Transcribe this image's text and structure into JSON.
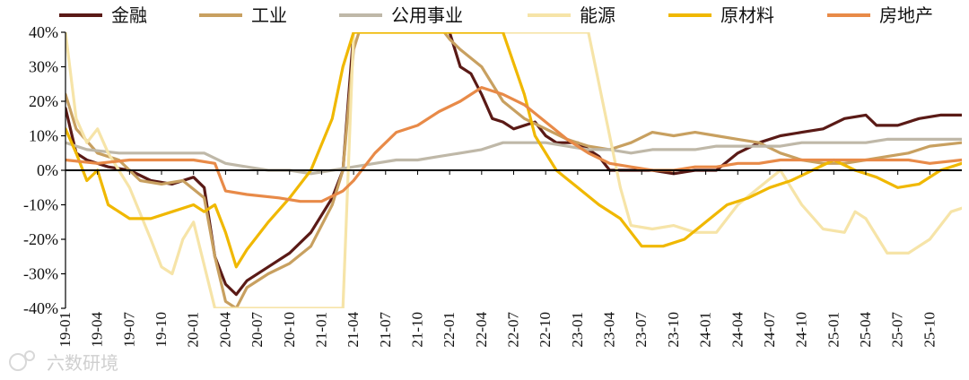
{
  "watermark": {
    "text": "六数研境",
    "icon": "camera-logo-icon"
  },
  "chart_data": {
    "type": "line",
    "title": "",
    "xlabel": "",
    "ylabel": "",
    "ylim": [
      -40,
      40
    ],
    "yticks": [
      40,
      30,
      20,
      10,
      0,
      -10,
      -20,
      -30,
      -40
    ],
    "ytick_labels": [
      "40%",
      "30%",
      "20%",
      "10%",
      "0%",
      "-10%",
      "-20%",
      "-30%",
      "-40%"
    ],
    "x_start": "2019-01",
    "x_end": "2026-01",
    "xticks": [
      "19-01",
      "19-04",
      "19-07",
      "19-10",
      "20-01",
      "20-04",
      "20-07",
      "20-10",
      "21-01",
      "21-04",
      "21-07",
      "21-10",
      "22-01",
      "22-04",
      "22-07",
      "22-10",
      "23-01",
      "23-04",
      "23-07",
      "23-10",
      "24-01",
      "24-04",
      "24-07",
      "24-10",
      "25-01",
      "25-04",
      "25-07",
      "25-10"
    ],
    "legend_position": "top",
    "grid": false,
    "series": [
      {
        "name": "金融",
        "color": "#5a1a16",
        "points": [
          [
            "2019-01",
            18
          ],
          [
            "2019-02",
            5
          ],
          [
            "2019-03",
            3
          ],
          [
            "2019-05",
            1
          ],
          [
            "2019-07",
            0
          ],
          [
            "2019-09",
            -3
          ],
          [
            "2019-11",
            -4
          ],
          [
            "2020-01",
            -2
          ],
          [
            "2020-02",
            -5
          ],
          [
            "2020-03",
            -25
          ],
          [
            "2020-04",
            -33
          ],
          [
            "2020-05",
            -36
          ],
          [
            "2020-06",
            -32
          ],
          [
            "2020-08",
            -28
          ],
          [
            "2020-10",
            -24
          ],
          [
            "2020-12",
            -18
          ],
          [
            "2021-02",
            -8
          ],
          [
            "2021-03",
            0
          ],
          [
            "2021-04",
            40
          ],
          [
            "2021-05",
            45
          ],
          [
            "2022-01",
            40
          ],
          [
            "2022-02",
            30
          ],
          [
            "2022-03",
            28
          ],
          [
            "2022-04",
            22
          ],
          [
            "2022-05",
            15
          ],
          [
            "2022-06",
            14
          ],
          [
            "2022-07",
            12
          ],
          [
            "2022-09",
            14
          ],
          [
            "2022-10",
            10
          ],
          [
            "2022-11",
            8
          ],
          [
            "2023-01",
            8
          ],
          [
            "2023-02",
            6
          ],
          [
            "2023-03",
            4
          ],
          [
            "2023-04",
            0
          ],
          [
            "2023-06",
            0
          ],
          [
            "2023-08",
            0
          ],
          [
            "2023-10",
            -1
          ],
          [
            "2023-12",
            0
          ],
          [
            "2024-02",
            0
          ],
          [
            "2024-04",
            5
          ],
          [
            "2024-06",
            8
          ],
          [
            "2024-08",
            10
          ],
          [
            "2024-10",
            11
          ],
          [
            "2024-12",
            12
          ],
          [
            "2025-02",
            15
          ],
          [
            "2025-04",
            16
          ],
          [
            "2025-05",
            13
          ],
          [
            "2025-07",
            13
          ],
          [
            "2025-09",
            15
          ],
          [
            "2025-11",
            16
          ],
          [
            "2026-01",
            16
          ]
        ]
      },
      {
        "name": "工业",
        "color": "#c8a060",
        "points": [
          [
            "2019-01",
            22
          ],
          [
            "2019-02",
            12
          ],
          [
            "2019-04",
            5
          ],
          [
            "2019-06",
            3
          ],
          [
            "2019-08",
            -3
          ],
          [
            "2019-10",
            -4
          ],
          [
            "2019-12",
            -3
          ],
          [
            "2020-02",
            -8
          ],
          [
            "2020-03",
            -25
          ],
          [
            "2020-04",
            -38
          ],
          [
            "2020-05",
            -40
          ],
          [
            "2020-06",
            -34
          ],
          [
            "2020-08",
            -30
          ],
          [
            "2020-10",
            -27
          ],
          [
            "2020-12",
            -22
          ],
          [
            "2021-02",
            -10
          ],
          [
            "2021-03",
            0
          ],
          [
            "2021-04",
            35
          ],
          [
            "2021-05",
            45
          ],
          [
            "2021-10",
            50
          ],
          [
            "2022-01",
            38
          ],
          [
            "2022-02",
            35
          ],
          [
            "2022-04",
            30
          ],
          [
            "2022-06",
            20
          ],
          [
            "2022-08",
            15
          ],
          [
            "2022-10",
            12
          ],
          [
            "2022-12",
            9
          ],
          [
            "2023-02",
            7
          ],
          [
            "2023-04",
            6
          ],
          [
            "2023-06",
            8
          ],
          [
            "2023-08",
            11
          ],
          [
            "2023-10",
            10
          ],
          [
            "2023-12",
            11
          ],
          [
            "2024-02",
            10
          ],
          [
            "2024-04",
            9
          ],
          [
            "2024-06",
            8
          ],
          [
            "2024-08",
            5
          ],
          [
            "2024-10",
            3
          ],
          [
            "2024-12",
            2
          ],
          [
            "2025-02",
            2
          ],
          [
            "2025-04",
            3
          ],
          [
            "2025-06",
            4
          ],
          [
            "2025-08",
            5
          ],
          [
            "2025-10",
            7
          ],
          [
            "2026-01",
            8
          ]
        ]
      },
      {
        "name": "公用事业",
        "color": "#bfb8a8",
        "points": [
          [
            "2019-01",
            8
          ],
          [
            "2019-03",
            6
          ],
          [
            "2019-06",
            5
          ],
          [
            "2019-09",
            5
          ],
          [
            "2019-12",
            5
          ],
          [
            "2020-02",
            5
          ],
          [
            "2020-04",
            2
          ],
          [
            "2020-06",
            1
          ],
          [
            "2020-08",
            0
          ],
          [
            "2020-10",
            0
          ],
          [
            "2020-12",
            -1
          ],
          [
            "2021-02",
            0
          ],
          [
            "2021-04",
            1
          ],
          [
            "2021-06",
            2
          ],
          [
            "2021-08",
            3
          ],
          [
            "2021-10",
            3
          ],
          [
            "2021-12",
            4
          ],
          [
            "2022-02",
            5
          ],
          [
            "2022-04",
            6
          ],
          [
            "2022-06",
            8
          ],
          [
            "2022-08",
            8
          ],
          [
            "2022-10",
            8
          ],
          [
            "2022-12",
            7
          ],
          [
            "2023-02",
            6
          ],
          [
            "2023-04",
            6
          ],
          [
            "2023-06",
            5
          ],
          [
            "2023-08",
            6
          ],
          [
            "2023-10",
            6
          ],
          [
            "2023-12",
            6
          ],
          [
            "2024-02",
            7
          ],
          [
            "2024-04",
            7
          ],
          [
            "2024-06",
            7
          ],
          [
            "2024-08",
            7
          ],
          [
            "2024-10",
            8
          ],
          [
            "2024-12",
            8
          ],
          [
            "2025-02",
            8
          ],
          [
            "2025-04",
            8
          ],
          [
            "2025-06",
            9
          ],
          [
            "2025-08",
            9
          ],
          [
            "2025-10",
            9
          ],
          [
            "2026-01",
            9
          ]
        ]
      },
      {
        "name": "能源",
        "color": "#f6e4a8",
        "points": [
          [
            "2019-01",
            40
          ],
          [
            "2019-02",
            15
          ],
          [
            "2019-03",
            8
          ],
          [
            "2019-04",
            12
          ],
          [
            "2019-05",
            5
          ],
          [
            "2019-07",
            -5
          ],
          [
            "2019-09",
            -20
          ],
          [
            "2019-10",
            -28
          ],
          [
            "2019-11",
            -30
          ],
          [
            "2019-12",
            -20
          ],
          [
            "2020-01",
            -15
          ],
          [
            "2020-03",
            -40
          ],
          [
            "2021-03",
            -40
          ],
          [
            "2021-04",
            40
          ],
          [
            "2023-02",
            40
          ],
          [
            "2023-04",
            10
          ],
          [
            "2023-05",
            -5
          ],
          [
            "2023-06",
            -16
          ],
          [
            "2023-08",
            -17
          ],
          [
            "2023-10",
            -16
          ],
          [
            "2023-12",
            -18
          ],
          [
            "2024-02",
            -18
          ],
          [
            "2024-04",
            -10
          ],
          [
            "2024-06",
            -5
          ],
          [
            "2024-08",
            0
          ],
          [
            "2024-10",
            -10
          ],
          [
            "2024-12",
            -17
          ],
          [
            "2025-02",
            -18
          ],
          [
            "2025-03",
            -12
          ],
          [
            "2025-04",
            -14
          ],
          [
            "2025-06",
            -24
          ],
          [
            "2025-08",
            -24
          ],
          [
            "2025-10",
            -20
          ],
          [
            "2025-12",
            -12
          ],
          [
            "2026-01",
            -11
          ]
        ]
      },
      {
        "name": "原材料",
        "color": "#f0b800",
        "points": [
          [
            "2019-01",
            12
          ],
          [
            "2019-02",
            5
          ],
          [
            "2019-03",
            -3
          ],
          [
            "2019-04",
            0
          ],
          [
            "2019-05",
            -10
          ],
          [
            "2019-07",
            -14
          ],
          [
            "2019-09",
            -14
          ],
          [
            "2019-11",
            -12
          ],
          [
            "2020-01",
            -10
          ],
          [
            "2020-02",
            -12
          ],
          [
            "2020-03",
            -10
          ],
          [
            "2020-04",
            -18
          ],
          [
            "2020-05",
            -28
          ],
          [
            "2020-06",
            -23
          ],
          [
            "2020-08",
            -15
          ],
          [
            "2020-10",
            -8
          ],
          [
            "2020-12",
            0
          ],
          [
            "2021-02",
            15
          ],
          [
            "2021-03",
            30
          ],
          [
            "2021-04",
            40
          ],
          [
            "2022-06",
            40
          ],
          [
            "2022-08",
            22
          ],
          [
            "2022-09",
            10
          ],
          [
            "2022-11",
            0
          ],
          [
            "2023-01",
            -5
          ],
          [
            "2023-03",
            -10
          ],
          [
            "2023-05",
            -14
          ],
          [
            "2023-07",
            -22
          ],
          [
            "2023-09",
            -22
          ],
          [
            "2023-11",
            -20
          ],
          [
            "2024-01",
            -15
          ],
          [
            "2024-03",
            -10
          ],
          [
            "2024-05",
            -8
          ],
          [
            "2024-07",
            -5
          ],
          [
            "2024-09",
            -3
          ],
          [
            "2024-11",
            0
          ],
          [
            "2025-01",
            3
          ],
          [
            "2025-03",
            0
          ],
          [
            "2025-05",
            -2
          ],
          [
            "2025-07",
            -5
          ],
          [
            "2025-09",
            -4
          ],
          [
            "2025-11",
            0
          ],
          [
            "2026-01",
            2
          ]
        ]
      },
      {
        "name": "房地产",
        "color": "#e88a48",
        "points": [
          [
            "2019-01",
            3
          ],
          [
            "2019-04",
            2
          ],
          [
            "2019-07",
            3
          ],
          [
            "2019-10",
            3
          ],
          [
            "2020-01",
            3
          ],
          [
            "2020-03",
            2
          ],
          [
            "2020-04",
            -6
          ],
          [
            "2020-06",
            -7
          ],
          [
            "2020-09",
            -8
          ],
          [
            "2020-11",
            -9
          ],
          [
            "2021-01",
            -9
          ],
          [
            "2021-03",
            -6
          ],
          [
            "2021-04",
            -3
          ],
          [
            "2021-06",
            5
          ],
          [
            "2021-08",
            11
          ],
          [
            "2021-10",
            13
          ],
          [
            "2021-12",
            17
          ],
          [
            "2022-02",
            20
          ],
          [
            "2022-04",
            24
          ],
          [
            "2022-06",
            22
          ],
          [
            "2022-08",
            19
          ],
          [
            "2022-10",
            14
          ],
          [
            "2022-12",
            9
          ],
          [
            "2023-02",
            5
          ],
          [
            "2023-04",
            2
          ],
          [
            "2023-06",
            1
          ],
          [
            "2023-08",
            0
          ],
          [
            "2023-10",
            0
          ],
          [
            "2023-12",
            1
          ],
          [
            "2024-02",
            1
          ],
          [
            "2024-04",
            2
          ],
          [
            "2024-06",
            2
          ],
          [
            "2024-08",
            3
          ],
          [
            "2024-10",
            3
          ],
          [
            "2024-12",
            3
          ],
          [
            "2025-02",
            3
          ],
          [
            "2025-04",
            3
          ],
          [
            "2025-06",
            3
          ],
          [
            "2025-08",
            3
          ],
          [
            "2025-10",
            2
          ],
          [
            "2026-01",
            3
          ]
        ]
      }
    ]
  }
}
